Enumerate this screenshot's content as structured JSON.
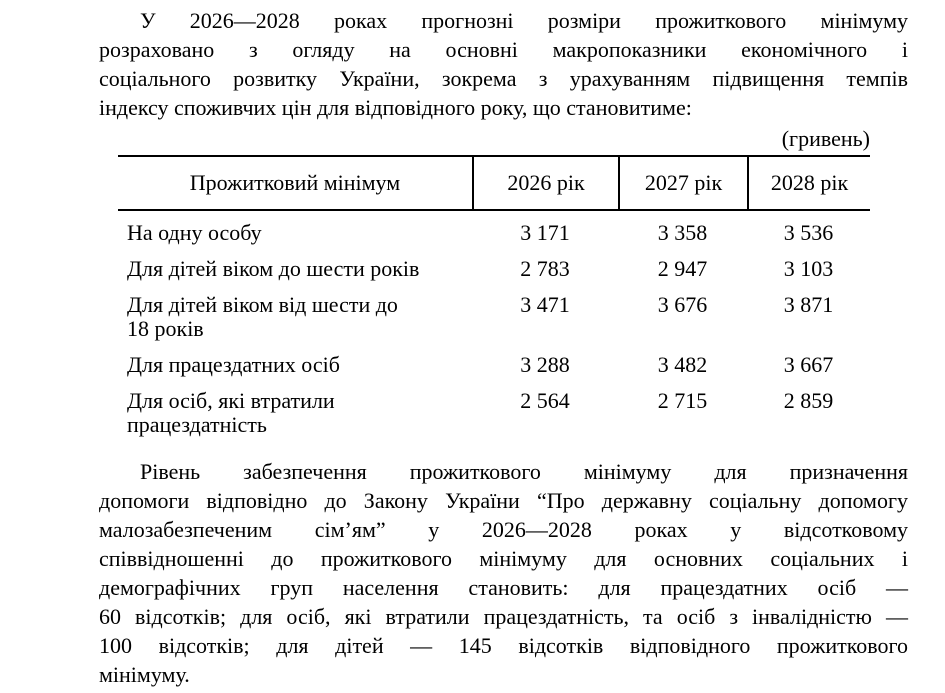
{
  "doc": {
    "intro": {
      "lines": [
        "У 2026—2028 роках прогнозні розміри прожиткового мінімуму",
        "розраховано з огляду на основні макропоказники економічного і",
        "соціального розвитку України, зокрема з урахуванням підвищення темпів",
        "індексу споживчих цін для відповідного року, що становитиме:"
      ]
    },
    "currency_note": "(гривень)",
    "table": {
      "columns": [
        "Прожитковий мінімум",
        "2026 рік",
        "2027 рік",
        "2028 рік"
      ],
      "rows": [
        {
          "label": "На одну особу",
          "values": [
            "3 171",
            "3 358",
            "3 536"
          ]
        },
        {
          "label": "Для дітей віком до шести років",
          "values": [
            "2 783",
            "2 947",
            "3 103"
          ]
        },
        {
          "label": "Для дітей віком від шести до\n18 років",
          "values": [
            "3 471",
            "3 676",
            "3 871"
          ]
        },
        {
          "label": "Для працездатних осіб",
          "values": [
            "3 288",
            "3 482",
            "3 667"
          ]
        },
        {
          "label": "Для осіб, які втратили\nпрацездатність",
          "values": [
            "2 564",
            "2 715",
            "2 859"
          ]
        }
      ]
    },
    "body": {
      "lines": [
        "Рівень забезпечення прожиткового мінімуму для призначення",
        "допомоги відповідно до Закону України “Про державну соціальну допомогу",
        "малозабезпеченим сім’ям” у 2026—2028 роках у відсотковому",
        "співвідношенні до прожиткового мінімуму для основних соціальних і",
        "демографічних груп населення становить: для працездатних осіб —",
        "60 відсотків; для осіб, які втратили працездатність, та осіб з інвалідністю —",
        "100 відсотків; для дітей — 145 відсотків відповідного прожиткового",
        "мінімуму."
      ]
    }
  }
}
